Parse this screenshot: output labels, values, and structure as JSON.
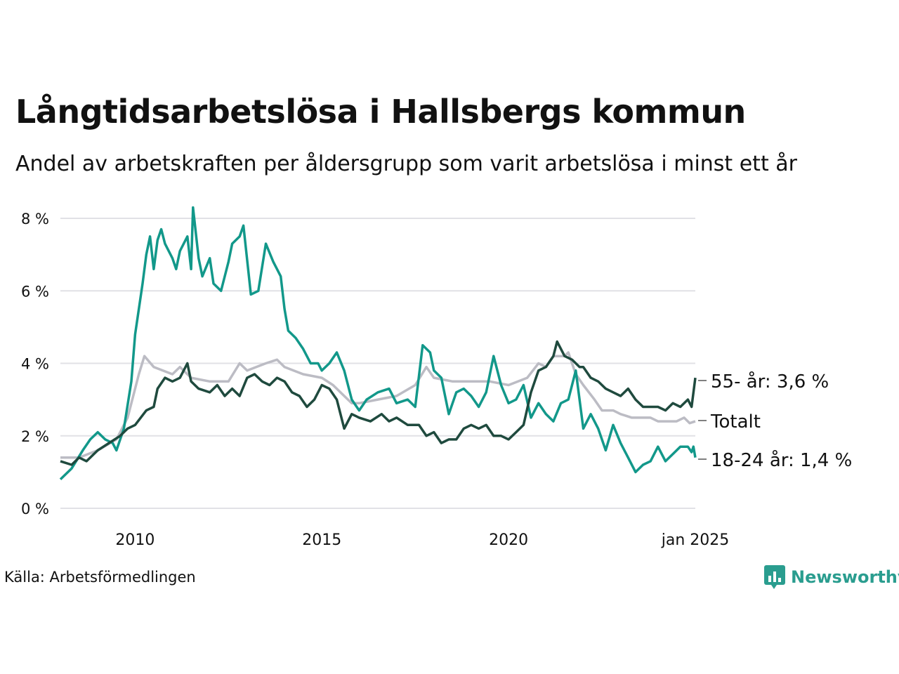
{
  "title": "Långtidsarbetslösa i Hallsbergs kommun",
  "subtitle": "Andel av arbetskraften per åldersgrupp som varit arbetslösa i minst ett år",
  "source": "Källa: Arbetsförmedlingen",
  "brand": {
    "name": "Newsworthy",
    "color": "#2a9d8f"
  },
  "chart_data": {
    "type": "line",
    "title": "Långtidsarbetslösa i Hallsbergs kommun",
    "subtitle": "Andel av arbetskraften per åldersgrupp som varit arbetslösa i minst ett år",
    "xlabel": "",
    "ylabel": "",
    "x_range": [
      2008.0,
      2025.0
    ],
    "ylim": [
      0,
      8.4
    ],
    "yticks": [
      0,
      2,
      4,
      6,
      8
    ],
    "ytick_labels": [
      "0 %",
      "2 %",
      "4 %",
      "6 %",
      "8 %"
    ],
    "xticks": [
      2010,
      2015,
      2020,
      2025
    ],
    "xtick_labels": [
      "2010",
      "2015",
      "2020",
      "jan 2025"
    ],
    "grid": "horizontal",
    "legend": "direct labels at right end",
    "series": [
      {
        "name": "Totalt",
        "label": "Totalt",
        "color": "#bcbcc4",
        "points": [
          [
            2008.0,
            1.4
          ],
          [
            2008.5,
            1.4
          ],
          [
            2009.0,
            1.6
          ],
          [
            2009.5,
            1.9
          ],
          [
            2009.8,
            2.5
          ],
          [
            2010.0,
            3.3
          ],
          [
            2010.1,
            3.7
          ],
          [
            2010.25,
            4.2
          ],
          [
            2010.5,
            3.9
          ],
          [
            2011.0,
            3.7
          ],
          [
            2011.2,
            3.9
          ],
          [
            2011.5,
            3.6
          ],
          [
            2012.0,
            3.5
          ],
          [
            2012.5,
            3.5
          ],
          [
            2012.8,
            4.0
          ],
          [
            2013.0,
            3.8
          ],
          [
            2013.5,
            4.0
          ],
          [
            2013.8,
            4.1
          ],
          [
            2014.0,
            3.9
          ],
          [
            2014.5,
            3.7
          ],
          [
            2015.0,
            3.6
          ],
          [
            2015.3,
            3.4
          ],
          [
            2015.6,
            3.1
          ],
          [
            2015.8,
            2.9
          ],
          [
            2016.0,
            2.9
          ],
          [
            2016.5,
            3.0
          ],
          [
            2017.0,
            3.1
          ],
          [
            2017.5,
            3.4
          ],
          [
            2017.8,
            3.9
          ],
          [
            2018.0,
            3.6
          ],
          [
            2018.5,
            3.5
          ],
          [
            2019.0,
            3.5
          ],
          [
            2019.5,
            3.5
          ],
          [
            2020.0,
            3.4
          ],
          [
            2020.5,
            3.6
          ],
          [
            2020.8,
            4.0
          ],
          [
            2021.0,
            3.9
          ],
          [
            2021.2,
            4.2
          ],
          [
            2021.5,
            4.2
          ],
          [
            2021.6,
            4.3
          ],
          [
            2021.8,
            3.7
          ],
          [
            2022.0,
            3.4
          ],
          [
            2022.3,
            3.0
          ],
          [
            2022.5,
            2.7
          ],
          [
            2022.8,
            2.7
          ],
          [
            2023.0,
            2.6
          ],
          [
            2023.3,
            2.5
          ],
          [
            2023.8,
            2.5
          ],
          [
            2024.0,
            2.4
          ],
          [
            2024.5,
            2.4
          ],
          [
            2024.7,
            2.5
          ],
          [
            2024.85,
            2.35
          ],
          [
            2025.0,
            2.4
          ]
        ]
      },
      {
        "name": "18-24 år",
        "label": "18-24 år: 1,4 %",
        "color": "#12988a",
        "points": [
          [
            2008.0,
            0.8
          ],
          [
            2008.3,
            1.1
          ],
          [
            2008.6,
            1.6
          ],
          [
            2008.8,
            1.9
          ],
          [
            2009.0,
            2.1
          ],
          [
            2009.2,
            1.9
          ],
          [
            2009.4,
            1.8
          ],
          [
            2009.5,
            1.6
          ],
          [
            2009.7,
            2.2
          ],
          [
            2009.9,
            3.5
          ],
          [
            2010.0,
            4.8
          ],
          [
            2010.2,
            6.2
          ],
          [
            2010.3,
            7.0
          ],
          [
            2010.4,
            7.5
          ],
          [
            2010.5,
            6.6
          ],
          [
            2010.6,
            7.4
          ],
          [
            2010.7,
            7.7
          ],
          [
            2010.8,
            7.3
          ],
          [
            2011.0,
            6.9
          ],
          [
            2011.1,
            6.6
          ],
          [
            2011.2,
            7.1
          ],
          [
            2011.4,
            7.5
          ],
          [
            2011.5,
            6.6
          ],
          [
            2011.55,
            8.3
          ],
          [
            2011.7,
            6.9
          ],
          [
            2011.8,
            6.4
          ],
          [
            2012.0,
            6.9
          ],
          [
            2012.1,
            6.2
          ],
          [
            2012.3,
            6.0
          ],
          [
            2012.5,
            6.8
          ],
          [
            2012.6,
            7.3
          ],
          [
            2012.8,
            7.5
          ],
          [
            2012.9,
            7.8
          ],
          [
            2013.1,
            5.9
          ],
          [
            2013.3,
            6.0
          ],
          [
            2013.5,
            7.3
          ],
          [
            2013.7,
            6.8
          ],
          [
            2013.9,
            6.4
          ],
          [
            2014.0,
            5.5
          ],
          [
            2014.1,
            4.9
          ],
          [
            2014.3,
            4.7
          ],
          [
            2014.5,
            4.4
          ],
          [
            2014.7,
            4.0
          ],
          [
            2014.9,
            4.0
          ],
          [
            2015.0,
            3.8
          ],
          [
            2015.2,
            4.0
          ],
          [
            2015.4,
            4.3
          ],
          [
            2015.6,
            3.8
          ],
          [
            2015.8,
            3.0
          ],
          [
            2016.0,
            2.7
          ],
          [
            2016.2,
            3.0
          ],
          [
            2016.5,
            3.2
          ],
          [
            2016.8,
            3.3
          ],
          [
            2017.0,
            2.9
          ],
          [
            2017.3,
            3.0
          ],
          [
            2017.5,
            2.8
          ],
          [
            2017.7,
            4.5
          ],
          [
            2017.9,
            4.3
          ],
          [
            2018.0,
            3.8
          ],
          [
            2018.2,
            3.6
          ],
          [
            2018.4,
            2.6
          ],
          [
            2018.6,
            3.2
          ],
          [
            2018.8,
            3.3
          ],
          [
            2019.0,
            3.1
          ],
          [
            2019.2,
            2.8
          ],
          [
            2019.4,
            3.2
          ],
          [
            2019.6,
            4.2
          ],
          [
            2019.8,
            3.4
          ],
          [
            2020.0,
            2.9
          ],
          [
            2020.2,
            3.0
          ],
          [
            2020.4,
            3.4
          ],
          [
            2020.6,
            2.5
          ],
          [
            2020.8,
            2.9
          ],
          [
            2021.0,
            2.6
          ],
          [
            2021.2,
            2.4
          ],
          [
            2021.4,
            2.9
          ],
          [
            2021.6,
            3.0
          ],
          [
            2021.8,
            3.8
          ],
          [
            2022.0,
            2.2
          ],
          [
            2022.2,
            2.6
          ],
          [
            2022.4,
            2.2
          ],
          [
            2022.6,
            1.6
          ],
          [
            2022.8,
            2.3
          ],
          [
            2023.0,
            1.8
          ],
          [
            2023.2,
            1.4
          ],
          [
            2023.4,
            1.0
          ],
          [
            2023.6,
            1.2
          ],
          [
            2023.8,
            1.3
          ],
          [
            2024.0,
            1.7
          ],
          [
            2024.2,
            1.3
          ],
          [
            2024.4,
            1.5
          ],
          [
            2024.6,
            1.7
          ],
          [
            2024.8,
            1.7
          ],
          [
            2024.9,
            1.55
          ],
          [
            2024.95,
            1.7
          ],
          [
            2025.0,
            1.4
          ]
        ]
      },
      {
        "name": "55- år",
        "label": "55- år: 3,6 %",
        "color": "#1f4a3e",
        "points": [
          [
            2008.0,
            1.3
          ],
          [
            2008.3,
            1.2
          ],
          [
            2008.5,
            1.4
          ],
          [
            2008.7,
            1.3
          ],
          [
            2009.0,
            1.6
          ],
          [
            2009.3,
            1.8
          ],
          [
            2009.6,
            2.0
          ],
          [
            2009.8,
            2.2
          ],
          [
            2010.0,
            2.3
          ],
          [
            2010.3,
            2.7
          ],
          [
            2010.5,
            2.8
          ],
          [
            2010.6,
            3.3
          ],
          [
            2010.8,
            3.6
          ],
          [
            2011.0,
            3.5
          ],
          [
            2011.2,
            3.6
          ],
          [
            2011.4,
            4.0
          ],
          [
            2011.5,
            3.5
          ],
          [
            2011.7,
            3.3
          ],
          [
            2012.0,
            3.2
          ],
          [
            2012.2,
            3.4
          ],
          [
            2012.4,
            3.1
          ],
          [
            2012.6,
            3.3
          ],
          [
            2012.8,
            3.1
          ],
          [
            2013.0,
            3.6
          ],
          [
            2013.2,
            3.7
          ],
          [
            2013.4,
            3.5
          ],
          [
            2013.6,
            3.4
          ],
          [
            2013.8,
            3.6
          ],
          [
            2014.0,
            3.5
          ],
          [
            2014.2,
            3.2
          ],
          [
            2014.4,
            3.1
          ],
          [
            2014.6,
            2.8
          ],
          [
            2014.8,
            3.0
          ],
          [
            2015.0,
            3.4
          ],
          [
            2015.2,
            3.3
          ],
          [
            2015.4,
            3.0
          ],
          [
            2015.6,
            2.2
          ],
          [
            2015.8,
            2.6
          ],
          [
            2016.0,
            2.5
          ],
          [
            2016.3,
            2.4
          ],
          [
            2016.6,
            2.6
          ],
          [
            2016.8,
            2.4
          ],
          [
            2017.0,
            2.5
          ],
          [
            2017.3,
            2.3
          ],
          [
            2017.6,
            2.3
          ],
          [
            2017.8,
            2.0
          ],
          [
            2018.0,
            2.1
          ],
          [
            2018.2,
            1.8
          ],
          [
            2018.4,
            1.9
          ],
          [
            2018.6,
            1.9
          ],
          [
            2018.8,
            2.2
          ],
          [
            2019.0,
            2.3
          ],
          [
            2019.2,
            2.2
          ],
          [
            2019.4,
            2.3
          ],
          [
            2019.6,
            2.0
          ],
          [
            2019.8,
            2.0
          ],
          [
            2020.0,
            1.9
          ],
          [
            2020.2,
            2.1
          ],
          [
            2020.4,
            2.3
          ],
          [
            2020.6,
            3.2
          ],
          [
            2020.8,
            3.8
          ],
          [
            2021.0,
            3.9
          ],
          [
            2021.2,
            4.2
          ],
          [
            2021.3,
            4.6
          ],
          [
            2021.5,
            4.2
          ],
          [
            2021.7,
            4.1
          ],
          [
            2021.9,
            3.9
          ],
          [
            2022.0,
            3.9
          ],
          [
            2022.2,
            3.6
          ],
          [
            2022.4,
            3.5
          ],
          [
            2022.6,
            3.3
          ],
          [
            2022.8,
            3.2
          ],
          [
            2023.0,
            3.1
          ],
          [
            2023.2,
            3.3
          ],
          [
            2023.4,
            3.0
          ],
          [
            2023.6,
            2.8
          ],
          [
            2023.8,
            2.8
          ],
          [
            2024.0,
            2.8
          ],
          [
            2024.2,
            2.7
          ],
          [
            2024.4,
            2.9
          ],
          [
            2024.6,
            2.8
          ],
          [
            2024.8,
            3.0
          ],
          [
            2024.9,
            2.8
          ],
          [
            2025.0,
            3.6
          ]
        ]
      }
    ]
  }
}
